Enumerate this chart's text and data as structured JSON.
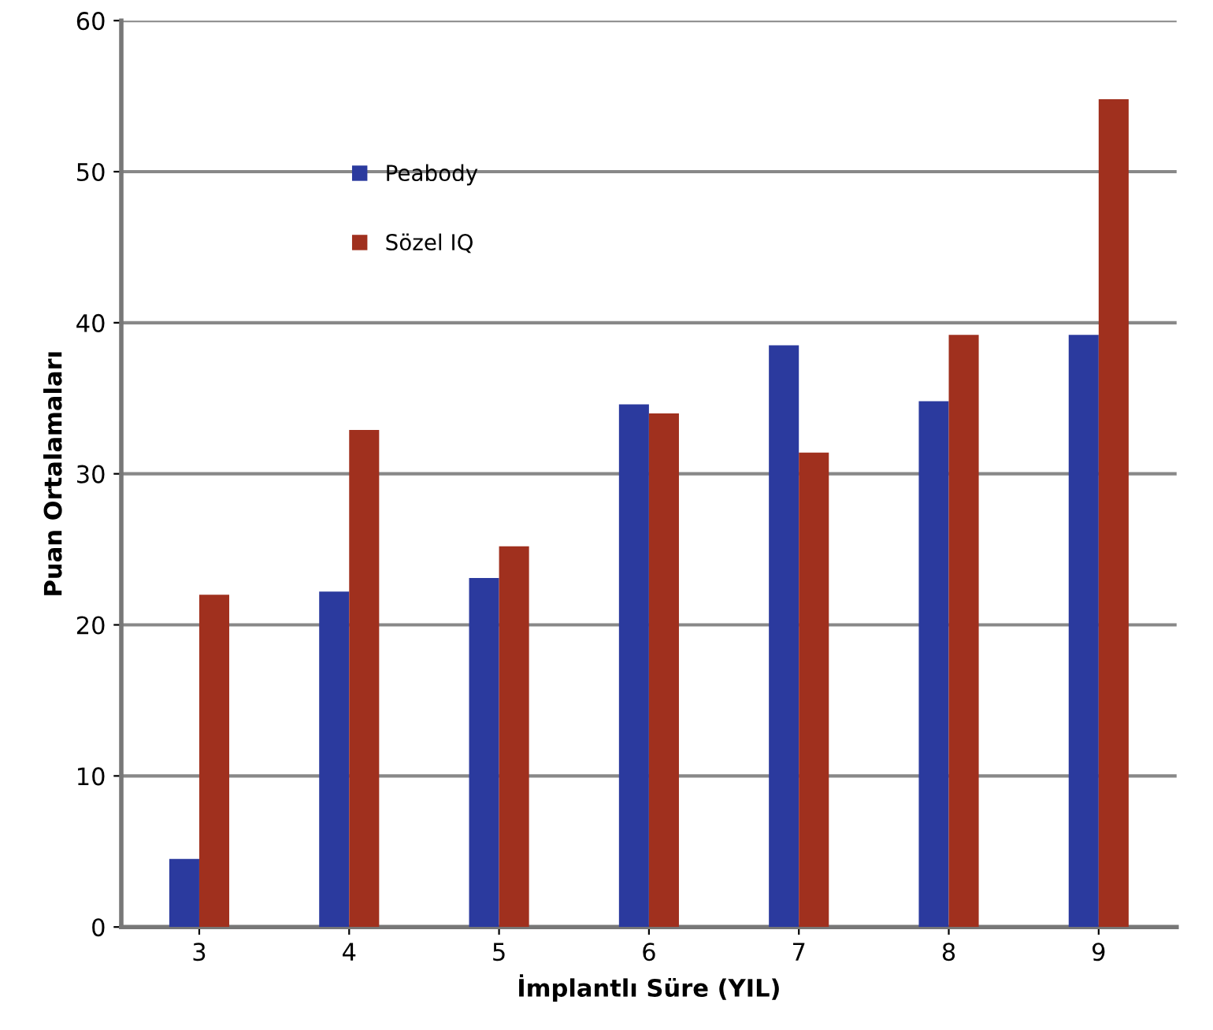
{
  "chart_data": {
    "type": "bar",
    "xlabel": "İmplantlı Süre (YIL)",
    "ylabel": "Puan Ortalamaları",
    "categories": [
      "3",
      "4",
      "5",
      "6",
      "7",
      "8",
      "9"
    ],
    "series": [
      {
        "name": "Peabody",
        "color": "#2b3a9e",
        "values": [
          4.5,
          22.2,
          23.1,
          34.6,
          38.5,
          34.8,
          39.2
        ]
      },
      {
        "name": "Sözel IQ",
        "color": "#a0301e",
        "values": [
          22,
          32.9,
          25.2,
          34.0,
          31.4,
          39.2,
          54.8
        ]
      }
    ],
    "ylim": [
      0,
      60
    ],
    "yticks": [
      0,
      10,
      20,
      30,
      40,
      50,
      60
    ],
    "grid": "y",
    "legend": "top left"
  }
}
